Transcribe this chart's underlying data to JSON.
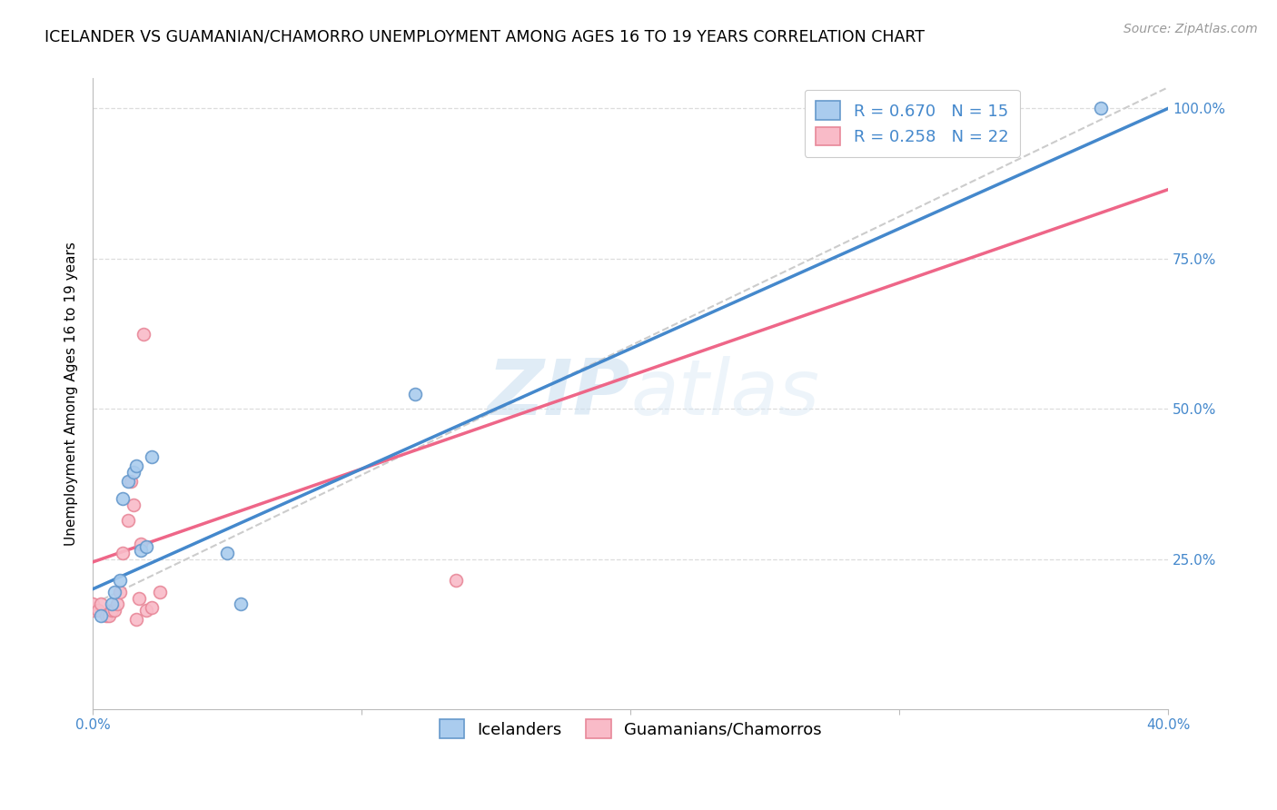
{
  "title": "ICELANDER VS GUAMANIAN/CHAMORRO UNEMPLOYMENT AMONG AGES 16 TO 19 YEARS CORRELATION CHART",
  "source": "Source: ZipAtlas.com",
  "ylabel": "Unemployment Among Ages 16 to 19 years",
  "xlim": [
    0.0,
    0.4
  ],
  "ylim": [
    0.0,
    1.05
  ],
  "xticks": [
    0.0,
    0.1,
    0.2,
    0.3,
    0.4
  ],
  "xtick_labels": [
    "0.0%",
    "",
    "",
    "",
    "40.0%"
  ],
  "yticks": [
    0.25,
    0.5,
    0.75,
    1.0
  ],
  "ytick_labels": [
    "25.0%",
    "50.0%",
    "75.0%",
    "100.0%"
  ],
  "icelanders_x": [
    0.003,
    0.007,
    0.008,
    0.01,
    0.011,
    0.013,
    0.015,
    0.016,
    0.018,
    0.02,
    0.022,
    0.05,
    0.055,
    0.12,
    0.375
  ],
  "icelanders_y": [
    0.155,
    0.175,
    0.195,
    0.215,
    0.35,
    0.38,
    0.395,
    0.405,
    0.265,
    0.27,
    0.42,
    0.26,
    0.175,
    0.525,
    1.0
  ],
  "guamanians_x": [
    0.0,
    0.0,
    0.002,
    0.003,
    0.005,
    0.006,
    0.007,
    0.008,
    0.009,
    0.01,
    0.011,
    0.013,
    0.014,
    0.015,
    0.016,
    0.017,
    0.018,
    0.019,
    0.02,
    0.022,
    0.025,
    0.135
  ],
  "guamanians_y": [
    0.165,
    0.175,
    0.165,
    0.175,
    0.155,
    0.155,
    0.165,
    0.165,
    0.175,
    0.195,
    0.26,
    0.315,
    0.38,
    0.34,
    0.15,
    0.185,
    0.275,
    0.625,
    0.165,
    0.17,
    0.195,
    0.215
  ],
  "icelander_color": "#aaccee",
  "guamanian_color": "#f9bbc8",
  "icelander_edge": "#6699cc",
  "guamanian_edge": "#e88899",
  "line_blue": "#4488cc",
  "line_pink": "#ee6688",
  "line_gray": "#cccccc",
  "R_ice": 0.67,
  "N_ice": 15,
  "R_gua": 0.258,
  "N_gua": 22,
  "legend_label_ice": "Icelanders",
  "legend_label_gua": "Guamanians/Chamorros",
  "watermark_zip": "ZIP",
  "watermark_atlas": "atlas",
  "background_color": "#ffffff",
  "grid_color": "#dddddd",
  "axis_color": "#bbbbbb",
  "title_fontsize": 12.5,
  "label_fontsize": 11,
  "tick_fontsize": 11,
  "legend_fontsize": 13,
  "source_fontsize": 10,
  "marker_size": 100,
  "marker_lw": 1.2
}
